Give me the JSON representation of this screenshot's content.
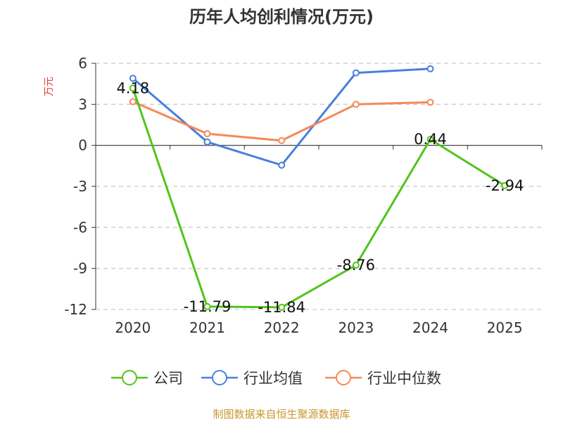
{
  "chart_data": {
    "type": "line",
    "title": "历年人均创利情况(万元)",
    "ylabel": "万元",
    "xlabel": "",
    "categories": [
      "2020",
      "2021",
      "2022",
      "2023",
      "2024",
      "2025"
    ],
    "ylim": [
      -12,
      6
    ],
    "yticks": [
      6,
      3,
      0,
      -3,
      -6,
      -9,
      -12
    ],
    "grid": true,
    "legend_position": "bottom",
    "series": [
      {
        "name": "公司",
        "color": "#52c41a",
        "values": [
          4.18,
          -11.79,
          -11.84,
          -8.76,
          0.44,
          -2.94
        ],
        "labels": [
          "4.18",
          "-11.79",
          "-11.84",
          "-8.76",
          "0.44",
          "-2.94"
        ]
      },
      {
        "name": "行业均值",
        "color": "#4a7fdc",
        "values": [
          4.9,
          0.25,
          -1.45,
          5.3,
          5.6,
          null
        ]
      },
      {
        "name": "行业中位数",
        "color": "#f5895a",
        "values": [
          3.2,
          0.85,
          0.35,
          3.0,
          3.15,
          null
        ]
      }
    ],
    "source": "制图数据来自恒生聚源数据库"
  }
}
